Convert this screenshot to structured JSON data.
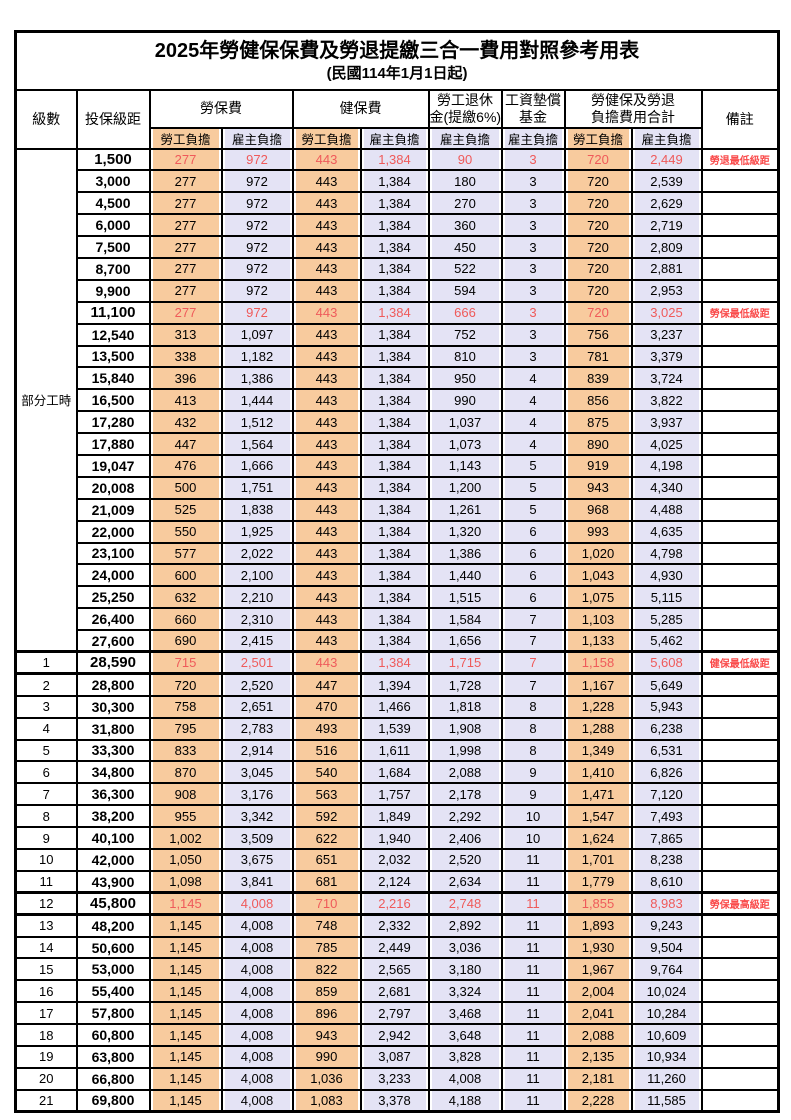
{
  "title": "2025年勞健保保費及勞退提繳三合一費用對照參考用表",
  "subtitle": "(民國114年1月1日起)",
  "header": {
    "level": "級數",
    "bracket": "投保級距",
    "labor_ins": "勞保費",
    "health_ins": "健保費",
    "pension_line1": "勞工退休",
    "pension_line2": "金(提繳6%)",
    "wage_fund_line1": "工資墊償",
    "wage_fund_line2": "基金",
    "total_line1": "勞健保及勞退",
    "total_line2": "負擔費用合計",
    "remark": "備註",
    "employee": "勞工負擔",
    "employer": "雇主負擔"
  },
  "part_time_label": "部分工時",
  "colors": {
    "employee_bg": "#F8CB9E",
    "employer_bg": "#E4E3F5",
    "special_value_text": "#ef5a5a",
    "remark_text": "#fa4b4b",
    "grid": "#000000"
  },
  "rows": [
    {
      "level": "",
      "bracket": "1,500",
      "values": [
        "277",
        "972",
        "443",
        "1,384",
        "90",
        "3",
        "720",
        "2,449"
      ],
      "remark": "勞退最低級距",
      "special": true,
      "thick": false
    },
    {
      "level": "",
      "bracket": "3,000",
      "values": [
        "277",
        "972",
        "443",
        "1,384",
        "180",
        "3",
        "720",
        "2,539"
      ],
      "remark": "",
      "special": false,
      "thick": false
    },
    {
      "level": "",
      "bracket": "4,500",
      "values": [
        "277",
        "972",
        "443",
        "1,384",
        "270",
        "3",
        "720",
        "2,629"
      ],
      "remark": "",
      "special": false,
      "thick": false
    },
    {
      "level": "",
      "bracket": "6,000",
      "values": [
        "277",
        "972",
        "443",
        "1,384",
        "360",
        "3",
        "720",
        "2,719"
      ],
      "remark": "",
      "special": false,
      "thick": false
    },
    {
      "level": "",
      "bracket": "7,500",
      "values": [
        "277",
        "972",
        "443",
        "1,384",
        "450",
        "3",
        "720",
        "2,809"
      ],
      "remark": "",
      "special": false,
      "thick": false
    },
    {
      "level": "",
      "bracket": "8,700",
      "values": [
        "277",
        "972",
        "443",
        "1,384",
        "522",
        "3",
        "720",
        "2,881"
      ],
      "remark": "",
      "special": false,
      "thick": false
    },
    {
      "level": "",
      "bracket": "9,900",
      "values": [
        "277",
        "972",
        "443",
        "1,384",
        "594",
        "3",
        "720",
        "2,953"
      ],
      "remark": "",
      "special": false,
      "thick": false
    },
    {
      "level": "",
      "bracket": "11,100",
      "values": [
        "277",
        "972",
        "443",
        "1,384",
        "666",
        "3",
        "720",
        "3,025"
      ],
      "remark": "勞保最低級距",
      "special": true,
      "thick": false
    },
    {
      "level": "",
      "bracket": "12,540",
      "values": [
        "313",
        "1,097",
        "443",
        "1,384",
        "752",
        "3",
        "756",
        "3,237"
      ],
      "remark": "",
      "special": false,
      "thick": false
    },
    {
      "level": "",
      "bracket": "13,500",
      "values": [
        "338",
        "1,182",
        "443",
        "1,384",
        "810",
        "3",
        "781",
        "3,379"
      ],
      "remark": "",
      "special": false,
      "thick": false
    },
    {
      "level": "",
      "bracket": "15,840",
      "values": [
        "396",
        "1,386",
        "443",
        "1,384",
        "950",
        "4",
        "839",
        "3,724"
      ],
      "remark": "",
      "special": false,
      "thick": false
    },
    {
      "level": "",
      "bracket": "16,500",
      "values": [
        "413",
        "1,444",
        "443",
        "1,384",
        "990",
        "4",
        "856",
        "3,822"
      ],
      "remark": "",
      "special": false,
      "thick": false
    },
    {
      "level": "",
      "bracket": "17,280",
      "values": [
        "432",
        "1,512",
        "443",
        "1,384",
        "1,037",
        "4",
        "875",
        "3,937"
      ],
      "remark": "",
      "special": false,
      "thick": false
    },
    {
      "level": "",
      "bracket": "17,880",
      "values": [
        "447",
        "1,564",
        "443",
        "1,384",
        "1,073",
        "4",
        "890",
        "4,025"
      ],
      "remark": "",
      "special": false,
      "thick": false
    },
    {
      "level": "",
      "bracket": "19,047",
      "values": [
        "476",
        "1,666",
        "443",
        "1,384",
        "1,143",
        "5",
        "919",
        "4,198"
      ],
      "remark": "",
      "special": false,
      "thick": false
    },
    {
      "level": "",
      "bracket": "20,008",
      "values": [
        "500",
        "1,751",
        "443",
        "1,384",
        "1,200",
        "5",
        "943",
        "4,340"
      ],
      "remark": "",
      "special": false,
      "thick": false
    },
    {
      "level": "",
      "bracket": "21,009",
      "values": [
        "525",
        "1,838",
        "443",
        "1,384",
        "1,261",
        "5",
        "968",
        "4,488"
      ],
      "remark": "",
      "special": false,
      "thick": false
    },
    {
      "level": "",
      "bracket": "22,000",
      "values": [
        "550",
        "1,925",
        "443",
        "1,384",
        "1,320",
        "6",
        "993",
        "4,635"
      ],
      "remark": "",
      "special": false,
      "thick": false
    },
    {
      "level": "",
      "bracket": "23,100",
      "values": [
        "577",
        "2,022",
        "443",
        "1,384",
        "1,386",
        "6",
        "1,020",
        "4,798"
      ],
      "remark": "",
      "special": false,
      "thick": false
    },
    {
      "level": "",
      "bracket": "24,000",
      "values": [
        "600",
        "2,100",
        "443",
        "1,384",
        "1,440",
        "6",
        "1,043",
        "4,930"
      ],
      "remark": "",
      "special": false,
      "thick": false
    },
    {
      "level": "",
      "bracket": "25,250",
      "values": [
        "632",
        "2,210",
        "443",
        "1,384",
        "1,515",
        "6",
        "1,075",
        "5,115"
      ],
      "remark": "",
      "special": false,
      "thick": false
    },
    {
      "level": "",
      "bracket": "26,400",
      "values": [
        "660",
        "2,310",
        "443",
        "1,384",
        "1,584",
        "7",
        "1,103",
        "5,285"
      ],
      "remark": "",
      "special": false,
      "thick": false
    },
    {
      "level": "",
      "bracket": "27,600",
      "values": [
        "690",
        "2,415",
        "443",
        "1,384",
        "1,656",
        "7",
        "1,133",
        "5,462"
      ],
      "remark": "",
      "special": false,
      "thick": false
    },
    {
      "level": "1",
      "bracket": "28,590",
      "values": [
        "715",
        "2,501",
        "443",
        "1,384",
        "1,715",
        "7",
        "1,158",
        "5,608"
      ],
      "remark": "健保最低級距",
      "special": true,
      "thick": true
    },
    {
      "level": "2",
      "bracket": "28,800",
      "values": [
        "720",
        "2,520",
        "447",
        "1,394",
        "1,728",
        "7",
        "1,167",
        "5,649"
      ],
      "remark": "",
      "special": false,
      "thick": false
    },
    {
      "level": "3",
      "bracket": "30,300",
      "values": [
        "758",
        "2,651",
        "470",
        "1,466",
        "1,818",
        "8",
        "1,228",
        "5,943"
      ],
      "remark": "",
      "special": false,
      "thick": false
    },
    {
      "level": "4",
      "bracket": "31,800",
      "values": [
        "795",
        "2,783",
        "493",
        "1,539",
        "1,908",
        "8",
        "1,288",
        "6,238"
      ],
      "remark": "",
      "special": false,
      "thick": false
    },
    {
      "level": "5",
      "bracket": "33,300",
      "values": [
        "833",
        "2,914",
        "516",
        "1,611",
        "1,998",
        "8",
        "1,349",
        "6,531"
      ],
      "remark": "",
      "special": false,
      "thick": false
    },
    {
      "level": "6",
      "bracket": "34,800",
      "values": [
        "870",
        "3,045",
        "540",
        "1,684",
        "2,088",
        "9",
        "1,410",
        "6,826"
      ],
      "remark": "",
      "special": false,
      "thick": false
    },
    {
      "level": "7",
      "bracket": "36,300",
      "values": [
        "908",
        "3,176",
        "563",
        "1,757",
        "2,178",
        "9",
        "1,471",
        "7,120"
      ],
      "remark": "",
      "special": false,
      "thick": false
    },
    {
      "level": "8",
      "bracket": "38,200",
      "values": [
        "955",
        "3,342",
        "592",
        "1,849",
        "2,292",
        "10",
        "1,547",
        "7,493"
      ],
      "remark": "",
      "special": false,
      "thick": false
    },
    {
      "level": "9",
      "bracket": "40,100",
      "values": [
        "1,002",
        "3,509",
        "622",
        "1,940",
        "2,406",
        "10",
        "1,624",
        "7,865"
      ],
      "remark": "",
      "special": false,
      "thick": false
    },
    {
      "level": "10",
      "bracket": "42,000",
      "values": [
        "1,050",
        "3,675",
        "651",
        "2,032",
        "2,520",
        "11",
        "1,701",
        "8,238"
      ],
      "remark": "",
      "special": false,
      "thick": false
    },
    {
      "level": "11",
      "bracket": "43,900",
      "values": [
        "1,098",
        "3,841",
        "681",
        "2,124",
        "2,634",
        "11",
        "1,779",
        "8,610"
      ],
      "remark": "",
      "special": false,
      "thick": false
    },
    {
      "level": "12",
      "bracket": "45,800",
      "values": [
        "1,145",
        "4,008",
        "710",
        "2,216",
        "2,748",
        "11",
        "1,855",
        "8,983"
      ],
      "remark": "勞保最高級距",
      "special": true,
      "thick": true
    },
    {
      "level": "13",
      "bracket": "48,200",
      "values": [
        "1,145",
        "4,008",
        "748",
        "2,332",
        "2,892",
        "11",
        "1,893",
        "9,243"
      ],
      "remark": "",
      "special": false,
      "thick": false
    },
    {
      "level": "14",
      "bracket": "50,600",
      "values": [
        "1,145",
        "4,008",
        "785",
        "2,449",
        "3,036",
        "11",
        "1,930",
        "9,504"
      ],
      "remark": "",
      "special": false,
      "thick": false
    },
    {
      "level": "15",
      "bracket": "53,000",
      "values": [
        "1,145",
        "4,008",
        "822",
        "2,565",
        "3,180",
        "11",
        "1,967",
        "9,764"
      ],
      "remark": "",
      "special": false,
      "thick": false
    },
    {
      "level": "16",
      "bracket": "55,400",
      "values": [
        "1,145",
        "4,008",
        "859",
        "2,681",
        "3,324",
        "11",
        "2,004",
        "10,024"
      ],
      "remark": "",
      "special": false,
      "thick": false
    },
    {
      "level": "17",
      "bracket": "57,800",
      "values": [
        "1,145",
        "4,008",
        "896",
        "2,797",
        "3,468",
        "11",
        "2,041",
        "10,284"
      ],
      "remark": "",
      "special": false,
      "thick": false
    },
    {
      "level": "18",
      "bracket": "60,800",
      "values": [
        "1,145",
        "4,008",
        "943",
        "2,942",
        "3,648",
        "11",
        "2,088",
        "10,609"
      ],
      "remark": "",
      "special": false,
      "thick": false
    },
    {
      "level": "19",
      "bracket": "63,800",
      "values": [
        "1,145",
        "4,008",
        "990",
        "3,087",
        "3,828",
        "11",
        "2,135",
        "10,934"
      ],
      "remark": "",
      "special": false,
      "thick": false
    },
    {
      "level": "20",
      "bracket": "66,800",
      "values": [
        "1,145",
        "4,008",
        "1,036",
        "3,233",
        "4,008",
        "11",
        "2,181",
        "11,260"
      ],
      "remark": "",
      "special": false,
      "thick": false
    },
    {
      "level": "21",
      "bracket": "69,800",
      "values": [
        "1,145",
        "4,008",
        "1,083",
        "3,378",
        "4,188",
        "11",
        "2,228",
        "11,585"
      ],
      "remark": "",
      "special": false,
      "thick": false
    }
  ]
}
